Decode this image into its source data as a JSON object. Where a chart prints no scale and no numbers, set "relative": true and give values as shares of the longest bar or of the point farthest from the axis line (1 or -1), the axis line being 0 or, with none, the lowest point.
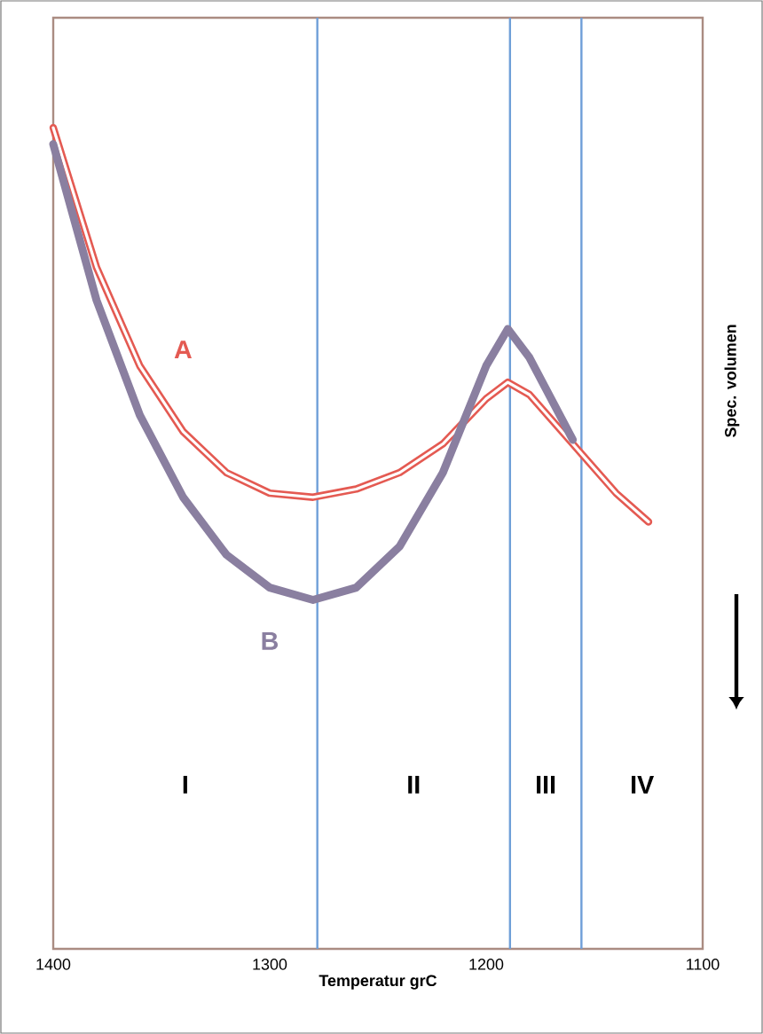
{
  "chart_data": {
    "type": "line",
    "relative": true,
    "xlabel": "Temperatur grC",
    "ylabel": "Spec. volumen",
    "xlim": [
      1400,
      1100
    ],
    "xticks": [
      1400,
      1300,
      1200,
      1100
    ],
    "tick_labels": "x",
    "grid": false,
    "marker": "none",
    "line_style": "solid",
    "series": [
      {
        "name": "A",
        "color": "#e45a52",
        "x": [
          1400,
          1380,
          1360,
          1340,
          1320,
          1300,
          1280,
          1260,
          1240,
          1220,
          1200,
          1190,
          1180,
          1160,
          1140,
          1125
        ],
        "values": [
          1.0,
          0.83,
          0.71,
          0.63,
          0.58,
          0.555,
          0.55,
          0.56,
          0.58,
          0.615,
          0.67,
          0.69,
          0.675,
          0.615,
          0.555,
          0.52
        ]
      },
      {
        "name": "B",
        "color": "#8a7fa0",
        "x": [
          1400,
          1380,
          1360,
          1340,
          1320,
          1300,
          1280,
          1260,
          1240,
          1220,
          1200,
          1190,
          1180,
          1170,
          1160
        ],
        "values": [
          0.98,
          0.79,
          0.65,
          0.55,
          0.48,
          0.44,
          0.425,
          0.44,
          0.49,
          0.58,
          0.71,
          0.755,
          0.72,
          0.67,
          0.62
        ]
      }
    ],
    "ref_lines": [
      {
        "axis": "x",
        "value": 1278,
        "color": "#6f9fd8"
      },
      {
        "axis": "x",
        "value": 1189,
        "color": "#6f9fd8"
      },
      {
        "axis": "x",
        "value": 1156,
        "color": "#6f9fd8"
      }
    ],
    "annotations": [
      "I",
      "II",
      "III",
      "IV"
    ]
  }
}
